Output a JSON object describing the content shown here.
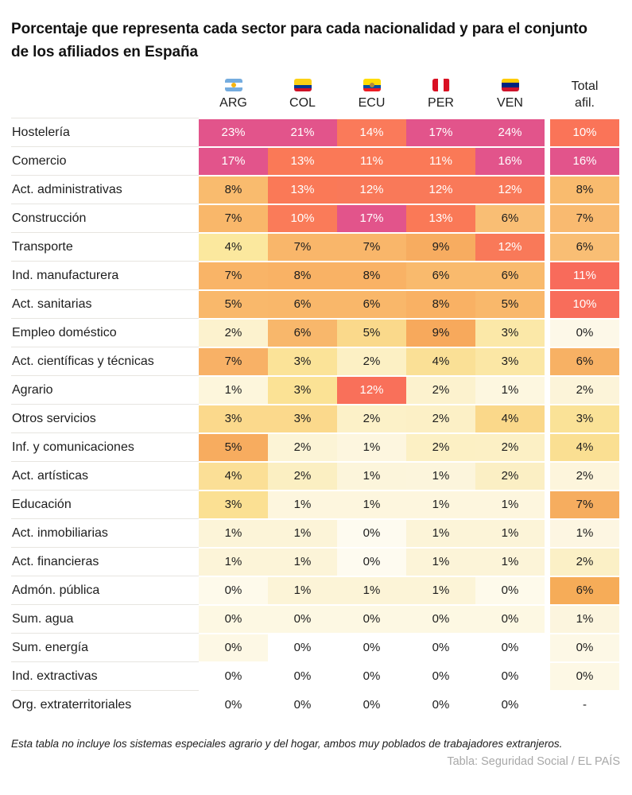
{
  "title": {
    "line1": "Porcentaje que representa cada sector para cada nacionalidad y para el conjunto",
    "line2": "de los afiliados en España"
  },
  "footnote": "Esta tabla no incluye los sistemas especiales agrario y del hogar, ambos muy poblados de trabajadores extranjeros.",
  "credit": "Tabla: Seguridad Social / EL PAÍS",
  "chart_data": {
    "type": "heatmap",
    "legend_position": "none",
    "value_unit": "percent",
    "columns": [
      {
        "code": "ARG",
        "flag_icon": "argentina-flag-icon",
        "flag_dir": "h",
        "flag_stripes": [
          "#74ACDF",
          "#FFFFFF",
          "#74ACDF"
        ],
        "flag_emblem": "#F6B40E"
      },
      {
        "code": "COL",
        "flag_icon": "colombia-flag-icon",
        "flag_dir": "h",
        "flag_stripes": [
          "#FCD116",
          "#FCD116",
          "#003893",
          "#CE1126"
        ],
        "flag_emblem": null
      },
      {
        "code": "ECU",
        "flag_icon": "ecuador-flag-icon",
        "flag_dir": "h",
        "flag_stripes": [
          "#FFDD00",
          "#FFDD00",
          "#034EA2",
          "#ED1C24"
        ],
        "flag_emblem": "#B08A3E"
      },
      {
        "code": "PER",
        "flag_icon": "peru-flag-icon",
        "flag_dir": "v",
        "flag_stripes": [
          "#D91023",
          "#FFFFFF",
          "#D91023"
        ],
        "flag_emblem": null
      },
      {
        "code": "VEN",
        "flag_icon": "venezuela-flag-icon",
        "flag_dir": "h",
        "flag_stripes": [
          "#FFCC00",
          "#00247D",
          "#CF142B"
        ],
        "flag_emblem": null
      }
    ],
    "total_header": {
      "line1": "Total",
      "line2": "afil."
    },
    "rows": [
      {
        "label": "Hostelería",
        "cells": [
          {
            "v": "23%",
            "c": "#E2548B"
          },
          {
            "v": "21%",
            "c": "#E2548B"
          },
          {
            "v": "14%",
            "c": "#FA7A5A"
          },
          {
            "v": "17%",
            "c": "#E2548B"
          },
          {
            "v": "24%",
            "c": "#E2548B"
          }
        ],
        "total": {
          "v": "10%",
          "c": "#FA7458"
        }
      },
      {
        "label": "Comercio",
        "cells": [
          {
            "v": "17%",
            "c": "#E2548B"
          },
          {
            "v": "13%",
            "c": "#FA7957"
          },
          {
            "v": "11%",
            "c": "#FA7957"
          },
          {
            "v": "11%",
            "c": "#FA7957"
          },
          {
            "v": "16%",
            "c": "#E2548B"
          }
        ],
        "total": {
          "v": "16%",
          "c": "#E2548B"
        }
      },
      {
        "label": "Act. administrativas",
        "cells": [
          {
            "v": "8%",
            "c": "#F9BB6E"
          },
          {
            "v": "13%",
            "c": "#FA7957"
          },
          {
            "v": "12%",
            "c": "#F97959"
          },
          {
            "v": "12%",
            "c": "#F97959"
          },
          {
            "v": "12%",
            "c": "#F97959"
          }
        ],
        "total": {
          "v": "8%",
          "c": "#F9BB6E"
        }
      },
      {
        "label": "Construcción",
        "cells": [
          {
            "v": "7%",
            "c": "#F9B76A"
          },
          {
            "v": "10%",
            "c": "#FA7B59"
          },
          {
            "v": "17%",
            "c": "#E2548B"
          },
          {
            "v": "13%",
            "c": "#FA7957"
          },
          {
            "v": "6%",
            "c": "#F9BE74"
          }
        ],
        "total": {
          "v": "7%",
          "c": "#F9BA70"
        }
      },
      {
        "label": "Transporte",
        "cells": [
          {
            "v": "4%",
            "c": "#FBE89E"
          },
          {
            "v": "7%",
            "c": "#F9B66A"
          },
          {
            "v": "7%",
            "c": "#F9B66A"
          },
          {
            "v": "9%",
            "c": "#F7AC60"
          },
          {
            "v": "12%",
            "c": "#F97959"
          }
        ],
        "total": {
          "v": "6%",
          "c": "#F9BE74"
        }
      },
      {
        "label": "Ind. manufacturera",
        "cells": [
          {
            "v": "7%",
            "c": "#F9B467"
          },
          {
            "v": "8%",
            "c": "#F9B265"
          },
          {
            "v": "8%",
            "c": "#F9B265"
          },
          {
            "v": "6%",
            "c": "#F9BA6D"
          },
          {
            "v": "6%",
            "c": "#F9BA6D"
          }
        ],
        "total": {
          "v": "11%",
          "c": "#F86B5B"
        }
      },
      {
        "label": "Act. sanitarias",
        "cells": [
          {
            "v": "5%",
            "c": "#F9B86B"
          },
          {
            "v": "6%",
            "c": "#F9B76A"
          },
          {
            "v": "6%",
            "c": "#F9B76A"
          },
          {
            "v": "8%",
            "c": "#F9B164"
          },
          {
            "v": "5%",
            "c": "#F9B86B"
          }
        ],
        "total": {
          "v": "10%",
          "c": "#F86D5B"
        }
      },
      {
        "label": "Empleo doméstico",
        "cells": [
          {
            "v": "2%",
            "c": "#FCF2CE"
          },
          {
            "v": "6%",
            "c": "#F8B76B"
          },
          {
            "v": "5%",
            "c": "#FAD98B"
          },
          {
            "v": "9%",
            "c": "#F7A95C"
          },
          {
            "v": "3%",
            "c": "#FBE8A8"
          }
        ],
        "total": {
          "v": "0%",
          "c": "#FDF8E8"
        }
      },
      {
        "label": "Act. científicas y técnicas",
        "cells": [
          {
            "v": "7%",
            "c": "#F8B166"
          },
          {
            "v": "3%",
            "c": "#FBE398"
          },
          {
            "v": "2%",
            "c": "#FCF0C4"
          },
          {
            "v": "4%",
            "c": "#FAE096"
          },
          {
            "v": "3%",
            "c": "#FBE7A5"
          }
        ],
        "total": {
          "v": "6%",
          "c": "#F7B164"
        }
      },
      {
        "label": "Agrario",
        "cells": [
          {
            "v": "1%",
            "c": "#FDF6DC"
          },
          {
            "v": "3%",
            "c": "#FBE295"
          },
          {
            "v": "12%",
            "c": "#F9705A"
          },
          {
            "v": "2%",
            "c": "#FCF2CE"
          },
          {
            "v": "1%",
            "c": "#FDF7E0"
          }
        ],
        "total": {
          "v": "2%",
          "c": "#FCF4D9"
        }
      },
      {
        "label": "Otros servicios",
        "cells": [
          {
            "v": "3%",
            "c": "#FBD98C"
          },
          {
            "v": "3%",
            "c": "#FBD98C"
          },
          {
            "v": "2%",
            "c": "#FCF1C8"
          },
          {
            "v": "2%",
            "c": "#FCF0C6"
          },
          {
            "v": "4%",
            "c": "#FAD88A"
          }
        ],
        "total": {
          "v": "3%",
          "c": "#FAE297"
        }
      },
      {
        "label": "Inf. y comunicaciones",
        "cells": [
          {
            "v": "5%",
            "c": "#F7AC5F"
          },
          {
            "v": "2%",
            "c": "#FCF4D6"
          },
          {
            "v": "1%",
            "c": "#FDF6DF"
          },
          {
            "v": "2%",
            "c": "#FCF0C4"
          },
          {
            "v": "2%",
            "c": "#FCF0C5"
          }
        ],
        "total": {
          "v": "4%",
          "c": "#FADF92"
        }
      },
      {
        "label": "Act. artísticas",
        "cells": [
          {
            "v": "4%",
            "c": "#FBDF96"
          },
          {
            "v": "2%",
            "c": "#FBEFC2"
          },
          {
            "v": "1%",
            "c": "#FCF5DB"
          },
          {
            "v": "1%",
            "c": "#FCF5DC"
          },
          {
            "v": "2%",
            "c": "#FBEFC4"
          }
        ],
        "total": {
          "v": "2%",
          "c": "#FDF5DC"
        }
      },
      {
        "label": "Educación",
        "cells": [
          {
            "v": "3%",
            "c": "#FBE093"
          },
          {
            "v": "1%",
            "c": "#FDF6DE"
          },
          {
            "v": "1%",
            "c": "#FDF6DE"
          },
          {
            "v": "1%",
            "c": "#FDF6DE"
          },
          {
            "v": "1%",
            "c": "#FDF6DE"
          }
        ],
        "total": {
          "v": "7%",
          "c": "#F6AD5F"
        }
      },
      {
        "label": "Act. inmobiliarias",
        "cells": [
          {
            "v": "1%",
            "c": "#FCF4D8"
          },
          {
            "v": "1%",
            "c": "#FCF4D8"
          },
          {
            "v": "0%",
            "c": "#FEFBF0"
          },
          {
            "v": "1%",
            "c": "#FCF4D8"
          },
          {
            "v": "1%",
            "c": "#FCF4D8"
          }
        ],
        "total": {
          "v": "1%",
          "c": "#FDF6E2"
        }
      },
      {
        "label": "Act. financieras",
        "cells": [
          {
            "v": "1%",
            "c": "#FCF4D8"
          },
          {
            "v": "1%",
            "c": "#FCF4D8"
          },
          {
            "v": "0%",
            "c": "#FEFBF0"
          },
          {
            "v": "1%",
            "c": "#FCF4D8"
          },
          {
            "v": "1%",
            "c": "#FCF4D8"
          }
        ],
        "total": {
          "v": "2%",
          "c": "#FBF0C6"
        }
      },
      {
        "label": "Admón. pública",
        "cells": [
          {
            "v": "0%",
            "c": "#FEFAEB"
          },
          {
            "v": "1%",
            "c": "#FCF4D7"
          },
          {
            "v": "1%",
            "c": "#FCF4D7"
          },
          {
            "v": "1%",
            "c": "#FCF4D7"
          },
          {
            "v": "0%",
            "c": "#FEFAEB"
          }
        ],
        "total": {
          "v": "6%",
          "c": "#F6AC58"
        }
      },
      {
        "label": "Sum. agua",
        "cells": [
          {
            "v": "0%",
            "c": "#FDF8E3"
          },
          {
            "v": "0%",
            "c": "#FDF8E3"
          },
          {
            "v": "0%",
            "c": "#FDF8E3"
          },
          {
            "v": "0%",
            "c": "#FDF8E3"
          },
          {
            "v": "0%",
            "c": "#FDF8E3"
          }
        ],
        "total": {
          "v": "1%",
          "c": "#FCF5DE"
        }
      },
      {
        "label": "Sum. energía",
        "cells": [
          {
            "v": "0%",
            "c": "#FDF8E5"
          },
          {
            "v": "0%",
            "c": "#FFFFFF"
          },
          {
            "v": "0%",
            "c": "#FFFFFF"
          },
          {
            "v": "0%",
            "c": "#FFFFFF"
          },
          {
            "v": "0%",
            "c": "#FFFFFF"
          }
        ],
        "total": {
          "v": "0%",
          "c": "#FDF8E6"
        }
      },
      {
        "label": "Ind. extractivas",
        "cells": [
          {
            "v": "0%",
            "c": "#FFFFFF"
          },
          {
            "v": "0%",
            "c": "#FFFFFF"
          },
          {
            "v": "0%",
            "c": "#FFFFFF"
          },
          {
            "v": "0%",
            "c": "#FFFFFF"
          },
          {
            "v": "0%",
            "c": "#FFFFFF"
          }
        ],
        "total": {
          "v": "0%",
          "c": "#FDF8E5"
        }
      },
      {
        "label": "Org. extraterritoriales",
        "cells": [
          {
            "v": "0%",
            "c": "#FFFFFF"
          },
          {
            "v": "0%",
            "c": "#FFFFFF"
          },
          {
            "v": "0%",
            "c": "#FFFFFF"
          },
          {
            "v": "0%",
            "c": "#FFFFFF"
          },
          {
            "v": "0%",
            "c": "#FFFFFF"
          }
        ],
        "total": {
          "v": "-",
          "c": "#FFFFFF"
        }
      }
    ],
    "color_scale_note": {
      "low": "#FFFFFF",
      "mid": "#F9B467",
      "high": "#E2548B",
      "dark_text": "#1d1d1d",
      "light_text": "#FFFFFF"
    }
  }
}
